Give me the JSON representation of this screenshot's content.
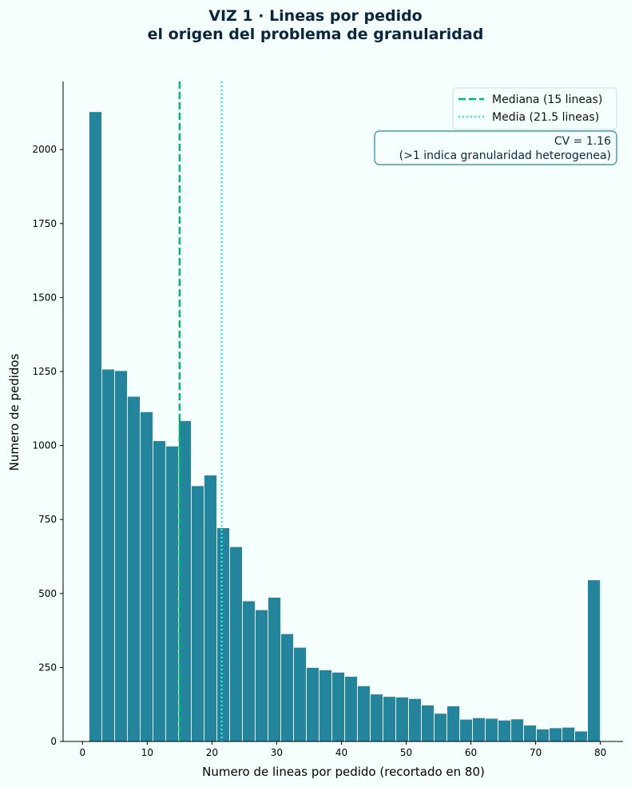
{
  "chart_data": {
    "type": "bar",
    "title_lines": [
      "VIZ 1 · Lineas por pedido",
      "el origen del problema de granularidad"
    ],
    "xlabel": "Numero de lineas por pedido (recortado en 80)",
    "ylabel": "Numero de pedidos",
    "xlim": [
      -3,
      83.5
    ],
    "ylim": [
      0,
      2230
    ],
    "xticks": [
      0,
      10,
      20,
      30,
      40,
      50,
      60,
      70,
      80
    ],
    "yticks": [
      0,
      250,
      500,
      750,
      1000,
      1250,
      1500,
      1750,
      2000
    ],
    "bin_edges": [
      1.0,
      2.975,
      4.95,
      6.925,
      8.9,
      10.875,
      12.85,
      14.825,
      16.8,
      18.775,
      20.75,
      22.725,
      24.7,
      26.675,
      28.65,
      30.625,
      32.6,
      34.575,
      36.55,
      38.525,
      40.5,
      42.475,
      44.45,
      46.425,
      48.4,
      50.375,
      52.35,
      54.325,
      56.3,
      58.275,
      60.25,
      62.225,
      64.2,
      66.175,
      68.15,
      70.125,
      72.1,
      74.075,
      76.05,
      78.025,
      80.0
    ],
    "values": [
      2128,
      1258,
      1253,
      1166,
      1114,
      1016,
      998,
      1084,
      864,
      900,
      722,
      658,
      475,
      445,
      487,
      364,
      318,
      250,
      242,
      234,
      220,
      188,
      160,
      152,
      150,
      145,
      123,
      95,
      120,
      75,
      80,
      78,
      72,
      76,
      55,
      42,
      46,
      48,
      35,
      546
    ],
    "bar_color": "#23849b",
    "reference_lines": [
      {
        "label": "Mediana (15 lineas)",
        "x": 15,
        "color": "#00b86b",
        "style": "dashed"
      },
      {
        "label": "Media (21.5 lineas)",
        "x": 21.5,
        "color": "#37e8e8",
        "style": "dotted"
      }
    ],
    "legend_position": "top-right",
    "annotation": [
      "CV = 1.16",
      "(>1 indica granularidad heterogenea)"
    ],
    "annotation_border_color": "#23849b",
    "grid": false
  }
}
